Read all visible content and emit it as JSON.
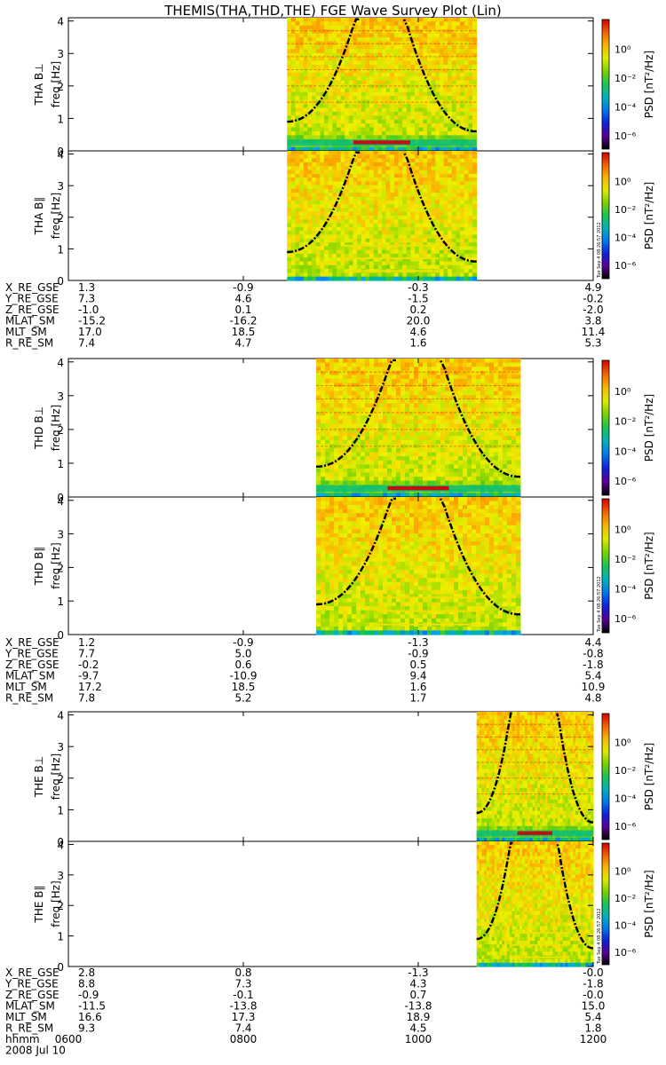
{
  "title": "THEMIS(THA,THD,THE) FGE Wave Survey Plot (Lin)",
  "colorbar": {
    "label": "PSD [nT²/Hz]",
    "ticks": [
      "10⁰",
      "10⁻²",
      "10⁻⁴",
      "10⁻⁶"
    ],
    "log_range": [
      -7,
      2
    ]
  },
  "stamp": "Tue Sep  4 08:26:57 2012",
  "time_axis": {
    "label_row": "hhmm",
    "ticks": [
      "0600",
      "0800",
      "1000",
      "1200"
    ],
    "date": "2008 Jul 10",
    "range": [
      "0600",
      "1200"
    ]
  },
  "chart_data": [
    {
      "type": "heatmap",
      "probe": "THA",
      "panels": [
        {
          "ylabel": "THA B⊥",
          "unit_label": "freq [Hz]",
          "yticks": [
            "0",
            "1",
            "2",
            "3",
            "4"
          ],
          "ylim": [
            0,
            4.1
          ],
          "data_time_range": [
            "0830",
            "1040"
          ]
        },
        {
          "ylabel": "THA B∥",
          "unit_label": "freq [Hz]",
          "yticks": [
            "0",
            "1",
            "2",
            "3",
            "4"
          ],
          "ylim": [
            0,
            4.1
          ],
          "data_time_range": [
            "0830",
            "1040"
          ]
        }
      ],
      "ephemeris": [
        {
          "name": "X_RE_GSE",
          "values": [
            "1.3",
            "-0.9",
            "-0.3",
            "4.9"
          ]
        },
        {
          "name": "Y_RE_GSE",
          "values": [
            "7.3",
            "4.6",
            "-1.5",
            "-0.2"
          ]
        },
        {
          "name": "Z_RE_GSE",
          "values": [
            "-1.0",
            "0.1",
            "0.2",
            "-2.0"
          ]
        },
        {
          "name": "MLAT_SM",
          "values": [
            "-15.2",
            "-16.2",
            "20.0",
            "3.8"
          ]
        },
        {
          "name": "MLT_SM",
          "values": [
            "17.0",
            "18.5",
            "4.6",
            "11.4"
          ]
        },
        {
          "name": "R_RE_SM",
          "values": [
            "7.4",
            "4.7",
            "1.6",
            "5.3"
          ]
        }
      ]
    },
    {
      "type": "heatmap",
      "probe": "THD",
      "panels": [
        {
          "ylabel": "THD B⊥",
          "unit_label": "freq [Hz]",
          "yticks": [
            "0",
            "1",
            "2",
            "3",
            "4"
          ],
          "ylim": [
            0,
            4.1
          ],
          "data_time_range": [
            "0850",
            "1110"
          ]
        },
        {
          "ylabel": "THD B∥",
          "unit_label": "freq [Hz]",
          "yticks": [
            "0",
            "1",
            "2",
            "3",
            "4"
          ],
          "ylim": [
            0,
            4.1
          ],
          "data_time_range": [
            "0850",
            "1110"
          ]
        }
      ],
      "ephemeris": [
        {
          "name": "X_RE_GSE",
          "values": [
            "1.2",
            "-0.9",
            "-1.3",
            "4.4"
          ]
        },
        {
          "name": "Y_RE_GSE",
          "values": [
            "7.7",
            "5.0",
            "-0.9",
            "-0.8"
          ]
        },
        {
          "name": "Z_RE_GSE",
          "values": [
            "-0.2",
            "0.6",
            "0.5",
            "-1.8"
          ]
        },
        {
          "name": "MLAT_SM",
          "values": [
            "-9.7",
            "-10.9",
            "9.4",
            "5.4"
          ]
        },
        {
          "name": "MLT_SM",
          "values": [
            "17.2",
            "18.5",
            "1.6",
            "10.9"
          ]
        },
        {
          "name": "R_RE_SM",
          "values": [
            "7.8",
            "5.2",
            "1.7",
            "4.8"
          ]
        }
      ]
    },
    {
      "type": "heatmap",
      "probe": "THE",
      "panels": [
        {
          "ylabel": "THE B⊥",
          "unit_label": "freq [Hz]",
          "yticks": [
            "0",
            "1",
            "2",
            "3",
            "4"
          ],
          "ylim": [
            0,
            4.1
          ],
          "data_time_range": [
            "1040",
            "1200"
          ]
        },
        {
          "ylabel": "THE B∥",
          "unit_label": "freq [Hz]",
          "yticks": [
            "0",
            "1",
            "2",
            "3",
            "4"
          ],
          "ylim": [
            0,
            4.1
          ],
          "data_time_range": [
            "1040",
            "1200"
          ]
        }
      ],
      "ephemeris": [
        {
          "name": "X_RE_GSE",
          "values": [
            "2.8",
            "0.8",
            "-1.3",
            "-0.0"
          ]
        },
        {
          "name": "Y_RE_GSE",
          "values": [
            "8.8",
            "7.3",
            "4.3",
            "-1.8"
          ]
        },
        {
          "name": "Z_RE_GSE",
          "values": [
            "-0.9",
            "-0.1",
            "0.7",
            "-0.0"
          ]
        },
        {
          "name": "MLAT_SM",
          "values": [
            "-11.5",
            "-13.8",
            "-13.8",
            "15.0"
          ]
        },
        {
          "name": "MLT_SM",
          "values": [
            "16.6",
            "17.3",
            "18.9",
            "5.4"
          ]
        },
        {
          "name": "R_RE_SM",
          "values": [
            "9.3",
            "7.4",
            "4.5",
            "1.8"
          ]
        }
      ]
    }
  ]
}
